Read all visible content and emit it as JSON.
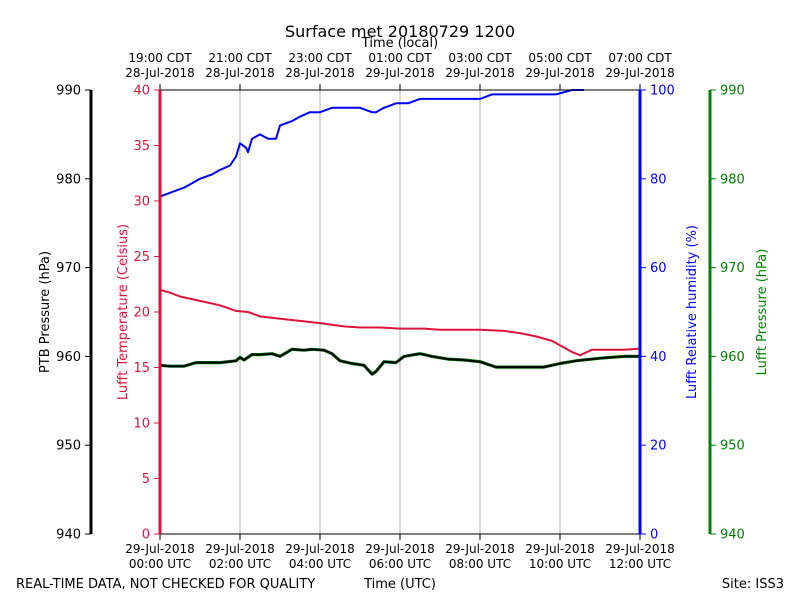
{
  "footer": {
    "left_text": "REAL-TIME DATA, NOT CHECKED FOR QUALITY",
    "site": "Site: ISS3"
  },
  "chart_data": {
    "type": "line",
    "title": "Surface met 20180729 1200",
    "x_top_label": "Time (local)",
    "x_bottom_label": "Time (UTC)",
    "x_range_hours": [
      0,
      12
    ],
    "utc_ticks": [
      {
        "hour": 0,
        "line1": "29-Jul-2018",
        "line2": "00:00 UTC"
      },
      {
        "hour": 2,
        "line1": "29-Jul-2018",
        "line2": "02:00 UTC"
      },
      {
        "hour": 4,
        "line1": "29-Jul-2018",
        "line2": "04:00 UTC"
      },
      {
        "hour": 6,
        "line1": "29-Jul-2018",
        "line2": "06:00 UTC"
      },
      {
        "hour": 8,
        "line1": "29-Jul-2018",
        "line2": "08:00 UTC"
      },
      {
        "hour": 10,
        "line1": "29-Jul-2018",
        "line2": "10:00 UTC"
      },
      {
        "hour": 12,
        "line1": "29-Jul-2018",
        "line2": "12:00 UTC"
      }
    ],
    "local_ticks": [
      {
        "hour": 0,
        "line1": "19:00 CDT",
        "line2": "28-Jul-2018"
      },
      {
        "hour": 2,
        "line1": "21:00 CDT",
        "line2": "28-Jul-2018"
      },
      {
        "hour": 4,
        "line1": "23:00 CDT",
        "line2": "28-Jul-2018"
      },
      {
        "hour": 6,
        "line1": "01:00 CDT",
        "line2": "29-Jul-2018"
      },
      {
        "hour": 8,
        "line1": "03:00 CDT",
        "line2": "29-Jul-2018"
      },
      {
        "hour": 10,
        "line1": "05:00 CDT",
        "line2": "29-Jul-2018"
      },
      {
        "hour": 12,
        "line1": "07:00 CDT",
        "line2": "29-Jul-2018"
      }
    ],
    "axes": {
      "ptb_pressure": {
        "label": "PTB Pressure (hPa)",
        "range": [
          940,
          990
        ],
        "ticks": [
          940,
          950,
          960,
          970,
          980,
          990
        ],
        "color": "#000000"
      },
      "temperature": {
        "label": "Lufft Temperature (Celsius)",
        "range": [
          0,
          40
        ],
        "ticks": [
          0,
          5,
          10,
          15,
          20,
          25,
          30,
          35,
          40
        ],
        "color": "#dc143c"
      },
      "humidity": {
        "label": "Lufft Relative humidity (%)",
        "range": [
          0,
          100
        ],
        "ticks": [
          0,
          20,
          40,
          60,
          80,
          100
        ],
        "color": "#0000ff"
      },
      "lufft_pressure": {
        "label": "Lufft Pressure (hPa)",
        "range": [
          940,
          990
        ],
        "ticks": [
          940,
          950,
          960,
          970,
          980,
          990
        ],
        "color": "#008000"
      }
    },
    "grid": "vertical",
    "series": [
      {
        "name": "Lufft Relative humidity",
        "axis": "humidity",
        "color": "#0000ff",
        "x": [
          0,
          0.3,
          0.6,
          1.0,
          1.3,
          1.5,
          1.75,
          1.9,
          2.0,
          2.15,
          2.2,
          2.3,
          2.5,
          2.7,
          2.9,
          3.0,
          3.3,
          3.5,
          3.75,
          4.0,
          4.3,
          4.6,
          5.0,
          5.3,
          5.4,
          5.6,
          5.9,
          6.2,
          6.5,
          6.8,
          7.0,
          7.5,
          7.9,
          8.0,
          8.3,
          8.8,
          9.4,
          9.9,
          10.3,
          10.6
        ],
        "values": [
          76,
          77,
          78,
          80,
          81,
          82,
          83,
          85,
          88,
          87,
          86,
          89,
          90,
          89,
          89,
          92,
          93,
          94,
          95,
          95,
          96,
          96,
          96,
          95,
          95,
          96,
          97,
          97,
          98,
          98,
          98,
          98,
          98,
          98,
          99,
          99,
          99,
          99,
          100,
          100
        ]
      },
      {
        "name": "Lufft Temperature",
        "axis": "temperature",
        "color": "#dc143c",
        "x": [
          0,
          0.2,
          0.5,
          1.0,
          1.5,
          1.9,
          2.2,
          2.5,
          3.0,
          3.5,
          4.0,
          4.6,
          5.0,
          5.5,
          6.0,
          6.6,
          7.0,
          7.5,
          8.0,
          8.6,
          9.0,
          9.4,
          9.8,
          10.1,
          10.3,
          10.5,
          10.8,
          11.2,
          11.6,
          12.0
        ],
        "values": [
          22.0,
          21.8,
          21.4,
          21.0,
          20.6,
          20.1,
          20.0,
          19.6,
          19.4,
          19.2,
          19.0,
          18.7,
          18.6,
          18.6,
          18.5,
          18.5,
          18.4,
          18.4,
          18.4,
          18.3,
          18.1,
          17.8,
          17.4,
          16.8,
          16.4,
          16.1,
          16.6,
          16.6,
          16.6,
          16.7
        ]
      },
      {
        "name": "Lufft Pressure",
        "axis": "lufft_pressure",
        "color": "#008000",
        "x": [
          0,
          0.25,
          0.6,
          0.9,
          1.2,
          1.5,
          1.9,
          2.0,
          2.1,
          2.3,
          2.5,
          2.8,
          3.0,
          3.3,
          3.6,
          3.8,
          4.1,
          4.3,
          4.5,
          4.8,
          5.1,
          5.3,
          5.4,
          5.6,
          5.9,
          6.1,
          6.5,
          6.8,
          7.2,
          7.6,
          8.0,
          8.4,
          8.8,
          9.2,
          9.6,
          10.0,
          10.4,
          11.0,
          11.6,
          12.0
        ],
        "values": [
          959.0,
          958.9,
          958.9,
          959.3,
          959.3,
          959.3,
          959.5,
          959.9,
          959.6,
          960.2,
          960.2,
          960.3,
          960.0,
          960.8,
          960.7,
          960.8,
          960.7,
          960.3,
          959.5,
          959.2,
          959.0,
          958.0,
          958.3,
          959.4,
          959.3,
          960.0,
          960.3,
          960.0,
          959.7,
          959.6,
          959.4,
          958.8,
          958.8,
          958.8,
          958.8,
          959.2,
          959.5,
          959.8,
          960.0,
          960.0
        ]
      },
      {
        "name": "PTB Pressure",
        "axis": "ptb_pressure",
        "color": "#000000",
        "x": [
          0,
          0.25,
          0.6,
          0.9,
          1.2,
          1.5,
          1.9,
          2.0,
          2.1,
          2.3,
          2.5,
          2.8,
          3.0,
          3.3,
          3.6,
          3.8,
          4.1,
          4.3,
          4.5,
          4.8,
          5.1,
          5.3,
          5.4,
          5.6,
          5.9,
          6.1,
          6.5,
          6.8,
          7.2,
          7.6,
          8.0,
          8.4,
          8.8,
          9.2,
          9.6,
          10.0,
          10.4,
          11.0,
          11.6,
          12.0
        ],
        "values": [
          959.0,
          958.9,
          958.9,
          959.3,
          959.3,
          959.3,
          959.5,
          959.9,
          959.6,
          960.2,
          960.2,
          960.3,
          960.0,
          960.8,
          960.7,
          960.8,
          960.7,
          960.3,
          959.5,
          959.2,
          959.0,
          958.0,
          958.3,
          959.4,
          959.3,
          960.0,
          960.3,
          960.0,
          959.7,
          959.6,
          959.4,
          958.8,
          958.8,
          958.8,
          958.8,
          959.2,
          959.5,
          959.8,
          960.0,
          960.0
        ]
      }
    ]
  }
}
